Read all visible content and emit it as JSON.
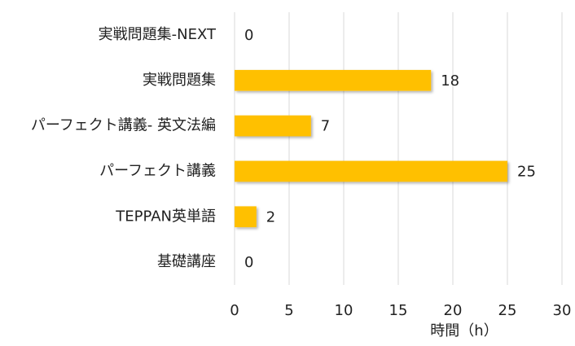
{
  "chart_data": {
    "type": "bar",
    "orientation": "horizontal",
    "categories": [
      "実戦問題集-NEXT",
      "実戦問題集",
      "パーフェクト講義- 英文法編",
      "パーフェクト講義",
      "TEPPAN英単語",
      "基礎講座"
    ],
    "values": [
      0,
      18,
      7,
      25,
      2,
      0
    ],
    "color": "#ffc000",
    "x_label": "時間（h）",
    "xlim": [
      0,
      30
    ],
    "xticks": [
      0,
      5,
      10,
      15,
      20,
      25,
      30
    ],
    "grid": true
  }
}
